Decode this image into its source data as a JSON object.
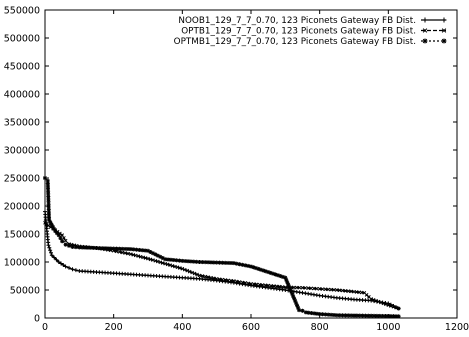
{
  "chart_data": {
    "type": "line",
    "title": "",
    "xlabel": "",
    "ylabel": "",
    "xlim": [
      0,
      1200
    ],
    "ylim": [
      0,
      550000
    ],
    "xticks": [
      0,
      200,
      400,
      600,
      800,
      1000,
      1200
    ],
    "yticks": [
      0,
      50000,
      100000,
      150000,
      200000,
      250000,
      300000,
      350000,
      400000,
      450000,
      500000,
      550000
    ],
    "grid": false,
    "legend_position": "top-right",
    "series": [
      {
        "name": "NOOB1_129_7_7_0.70, 123 Piconets Gateway FB Dist.",
        "marker": "plus",
        "x": [
          0,
          5,
          10,
          20,
          40,
          60,
          80,
          100,
          150,
          200,
          250,
          300,
          350,
          400,
          450,
          500,
          550,
          600,
          650,
          700,
          750,
          800,
          850,
          900,
          950,
          1000,
          1030
        ],
        "y": [
          190000,
          160000,
          130000,
          112000,
          100000,
          92000,
          87000,
          84000,
          82000,
          80000,
          78000,
          76000,
          74000,
          72000,
          70000,
          67000,
          63000,
          58000,
          54000,
          50000,
          45000,
          40000,
          36000,
          33000,
          31000,
          26000,
          17000
        ]
      },
      {
        "name": "OPTB1_129_7_7_0.70, 123 Piconets Gateway FB Dist.",
        "marker": "cross",
        "x": [
          0,
          5,
          10,
          30,
          50,
          60,
          70,
          100,
          150,
          200,
          250,
          300,
          350,
          400,
          450,
          500,
          550,
          600,
          650,
          700,
          750,
          800,
          850,
          900,
          930,
          950,
          1000,
          1030
        ],
        "y": [
          170000,
          168000,
          165000,
          157000,
          148000,
          138000,
          132000,
          128000,
          125000,
          120000,
          114000,
          106000,
          97000,
          88000,
          76000,
          70000,
          66000,
          61000,
          58000,
          55000,
          54000,
          52000,
          50000,
          47000,
          45000,
          34000,
          23000,
          17000
        ]
      },
      {
        "name": "OPTMB1_129_7_7_0.70, 123 Piconets Gateway FB Dist.",
        "marker": "star",
        "x": [
          0,
          8,
          12,
          30,
          40,
          50,
          60,
          80,
          100,
          150,
          200,
          250,
          300,
          350,
          400,
          450,
          500,
          550,
          600,
          650,
          700,
          740,
          750,
          760,
          800,
          850,
          900,
          950,
          1000,
          1030
        ],
        "y": [
          250000,
          245000,
          175000,
          155000,
          148000,
          137000,
          131000,
          127000,
          126000,
          125000,
          124000,
          123000,
          120000,
          105000,
          102000,
          100000,
          99000,
          98000,
          92000,
          82000,
          72000,
          14000,
          13000,
          10000,
          7000,
          5000,
          4500,
          4000,
          3500,
          3000
        ]
      }
    ]
  }
}
